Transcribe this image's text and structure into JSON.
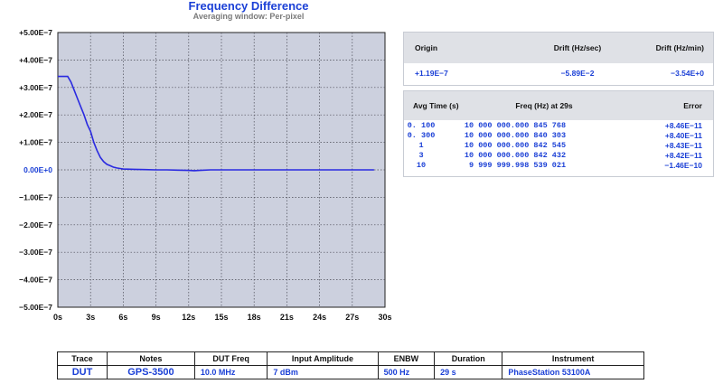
{
  "header": {
    "title": "Frequency Difference",
    "subtitle": "Averaging window: Per-pixel"
  },
  "chart_data": {
    "type": "line",
    "title": "Frequency Difference",
    "subtitle": "Averaging window: Per-pixel",
    "xlabel": "",
    "ylabel": "",
    "xlim": [
      0,
      30
    ],
    "ylim": [
      -5e-07,
      5e-07
    ],
    "x_tick_labels": [
      "0s",
      "3s",
      "6s",
      "9s",
      "12s",
      "15s",
      "18s",
      "21s",
      "24s",
      "27s",
      "30s"
    ],
    "y_tick_labels": [
      "+5.00E−7",
      "+4.00E−7",
      "+3.00E−7",
      "+2.00E−7",
      "+1.00E−7",
      "0.00E+0",
      "−1.00E−7",
      "−2.00E−7",
      "−3.00E−7",
      "−4.00E−7",
      "−5.00E−7"
    ],
    "grid": true,
    "series": [
      {
        "name": "DUT",
        "color": "#2a2ae0",
        "x": [
          0,
          0.9,
          1.2,
          1.5,
          1.8,
          2.1,
          2.4,
          2.7,
          3.0,
          3.3,
          3.6,
          3.9,
          4.2,
          4.5,
          4.8,
          5.1,
          5.4,
          5.7,
          6.0,
          7.0,
          8.0,
          9.0,
          10.0,
          11.0,
          12.0,
          12.5,
          13.0,
          14.0,
          15.0,
          17.0,
          20.0,
          24.0,
          27.0,
          29.0
        ],
        "y": [
          3.4e-07,
          3.4e-07,
          3.2e-07,
          2.9e-07,
          2.6e-07,
          2.3e-07,
          2e-07,
          1.65e-07,
          1.4e-07,
          1e-07,
          7e-08,
          4.5e-08,
          3e-08,
          2e-08,
          1.5e-08,
          1e-08,
          7e-09,
          5e-09,
          3e-09,
          2e-09,
          1e-09,
          0.0,
          0.0,
          -1e-09,
          -2e-09,
          -3e-09,
          -2e-09,
          0.0,
          0.0,
          0.0,
          0.0,
          0.0,
          0.0,
          0.0
        ]
      }
    ]
  },
  "drift_table": {
    "headers": [
      "Origin",
      "Drift (Hz/sec)",
      "Drift (Hz/min)"
    ],
    "values": [
      "+1.19E−7",
      "−5.89E−2",
      "−3.54E+0"
    ]
  },
  "avg_table": {
    "headers": [
      "Avg Time (s)",
      "Freq (Hz) at 29s",
      "Error"
    ],
    "rows": [
      [
        "0. 100",
        "10 000 000.000 845 768",
        "+8.46E−11"
      ],
      [
        "0. 300",
        "10 000 000.000 840 303",
        "+8.40E−11"
      ],
      [
        "1",
        "10 000 000.000 842 545",
        "+8.43E−11"
      ],
      [
        "3",
        "10 000 000.000 842 432",
        "+8.42E−11"
      ],
      [
        "10",
        " 9 999 999.998 539 021",
        "−1.46E−10"
      ]
    ]
  },
  "instrument_table": {
    "headers": [
      "Trace",
      "Notes",
      "DUT Freq",
      "Input Amplitude",
      "ENBW",
      "Duration",
      "Instrument"
    ],
    "row": [
      "DUT",
      "GPS-3500",
      "10.0 MHz",
      "7 dBm",
      "500 Hz",
      "29 s",
      "PhaseStation 53100A"
    ]
  }
}
